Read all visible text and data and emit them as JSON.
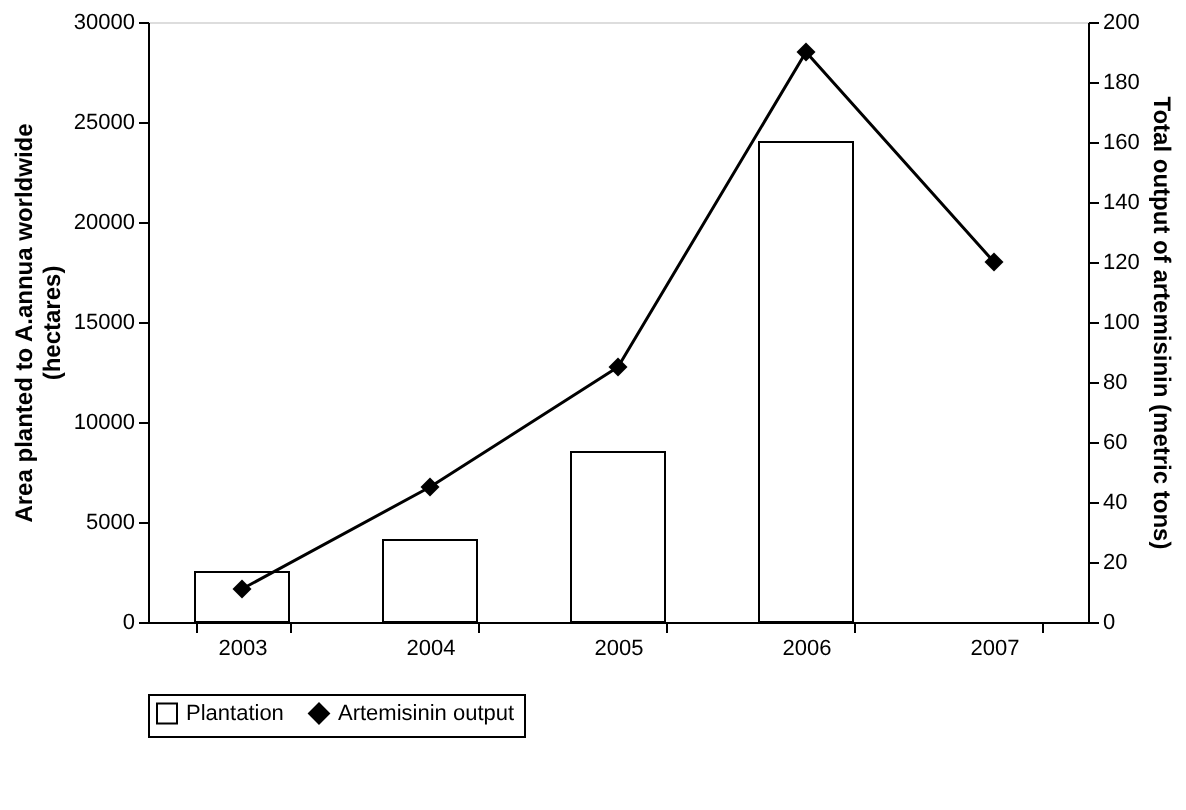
{
  "chart_data": {
    "type": "bar",
    "categories": [
      "2003",
      "2004",
      "2005",
      "2006",
      "2007"
    ],
    "ylabel": "Area planted to A.annua worldwide\n(hectares)",
    "y2label": "Total output of artemisinin (metric tons)",
    "ylim": [
      0,
      30000
    ],
    "yticks": [
      0,
      5000,
      10000,
      15000,
      20000,
      25000,
      30000
    ],
    "y2lim": [
      0,
      200
    ],
    "y2ticks": [
      0,
      20,
      40,
      60,
      80,
      100,
      120,
      140,
      160,
      180,
      200
    ],
    "legend": "bottom",
    "grid": false,
    "series": [
      {
        "name": "Plantation",
        "color": "#ffffff",
        "values": [
          2500,
          4100,
          8500,
          24000,
          null
        ]
      },
      {
        "name": "Artemisinin output",
        "type": "line",
        "axis": "y2",
        "color": "#000000",
        "marker": "diamond",
        "line_style": "solid",
        "values": [
          11,
          45,
          85,
          190,
          120
        ]
      }
    ]
  }
}
